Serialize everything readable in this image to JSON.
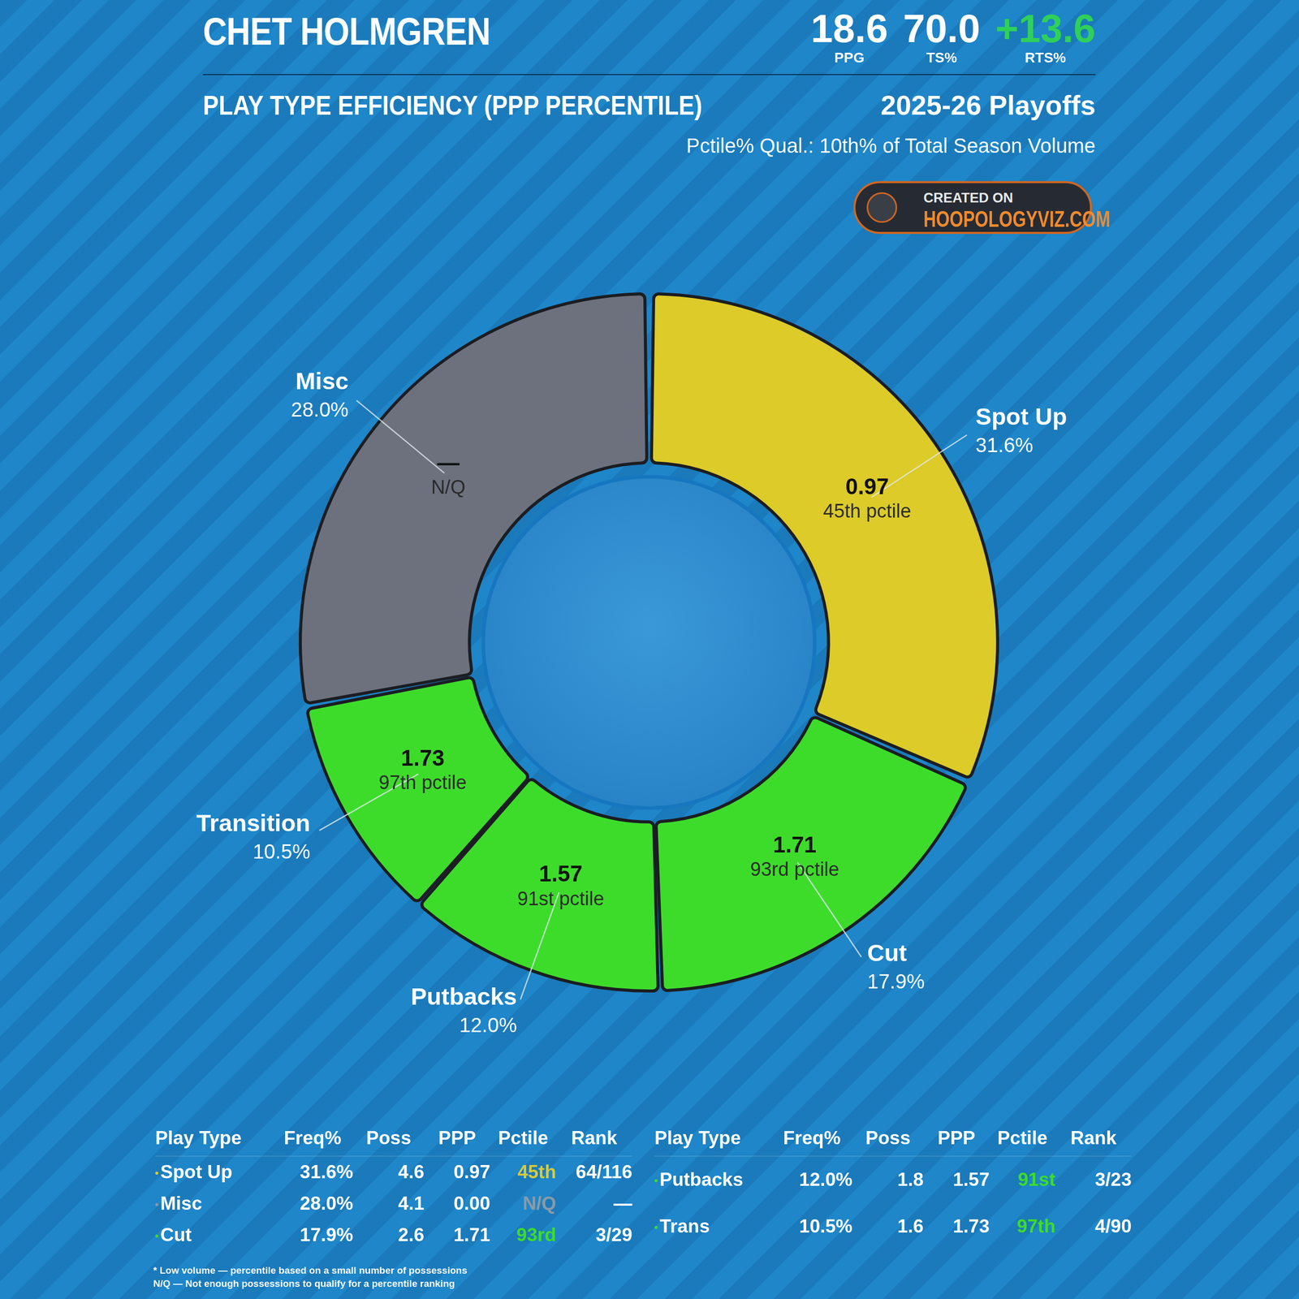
{
  "header": {
    "player": "CHET HOLMGREN",
    "stats": [
      {
        "value": "18.6",
        "label": "PPG"
      },
      {
        "value": "70.0",
        "label": "TS%"
      },
      {
        "value": "+13.6",
        "label": "RTS%"
      }
    ],
    "subtitle": "PLAY TYPE EFFICIENCY (PPP PERCENTILE)",
    "season": "2025-26 Playoffs",
    "qualifier": "Pctile% Qual.: 10th% of Total Season Volume",
    "badge": {
      "line1": "CREATED ON",
      "line2": "HOOPOLOGYVIZ.COM"
    }
  },
  "chart_data": {
    "type": "doughnut",
    "categories": [
      "Spot Up",
      "Cut",
      "Putbacks",
      "Transition",
      "Misc"
    ],
    "values": [
      31.6,
      17.9,
      12.0,
      10.5,
      28.0
    ],
    "value_labels": [
      "31.6%",
      "17.9%",
      "12.0%",
      "10.5%",
      "28.0%"
    ],
    "colors": [
      "#dccb28",
      "#3ddc2a",
      "#3ddc2a",
      "#3ddc2a",
      "#6c717d"
    ],
    "ppp_labels": [
      "0.97",
      "1.71",
      "1.57",
      "1.73",
      "—"
    ],
    "pctile_labels": [
      "45th pctile",
      "93rd pctile",
      "91st pctile",
      "97th pctile",
      "N/Q"
    ],
    "data_labels": true
  },
  "table": {
    "columns": [
      "Play Type",
      "Freq%",
      "Poss",
      "PPP",
      "Pctile",
      "Rank"
    ],
    "rows": [
      [
        "Spot Up",
        "31.6%",
        "4.6",
        "0.97",
        "45th",
        "64/116"
      ],
      [
        "Misc",
        "28.0%",
        "4.1",
        "0.00",
        "N/Q",
        "—"
      ],
      [
        "Cut",
        "17.9%",
        "2.6",
        "1.71",
        "93rd",
        "3/29"
      ],
      [
        "Putbacks",
        "12.0%",
        "1.8",
        "1.57",
        "91st",
        "3/23"
      ],
      [
        "Trans",
        "10.5%",
        "1.6",
        "1.73",
        "97th",
        "4/90"
      ]
    ]
  },
  "footnotes": [
    "* Low volume — percentile based on a small number of possessions",
    "N/Q — Not enough possessions to qualify for a percentile ranking"
  ]
}
